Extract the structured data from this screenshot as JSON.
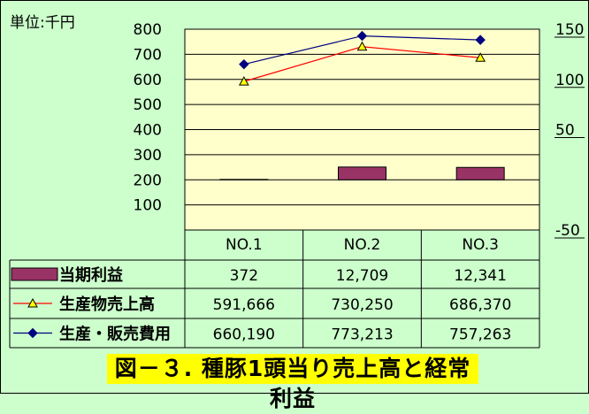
{
  "unit_label": "単位:千円",
  "caption": "図－３. 種豚1頭当り売上高と経常利益",
  "colors": {
    "background": "#ccffcc",
    "plot_area": "#ffffcc",
    "bar": "#993366",
    "line_sales": "#ff0000",
    "line_sales_marker": "#ffff00",
    "line_cost": "#000080"
  },
  "chart_data": {
    "type": "bar",
    "categories": [
      "NO.1",
      "NO.2",
      "NO.3"
    ],
    "y_left": {
      "ticks": [
        100,
        200,
        300,
        400,
        500,
        600,
        700,
        800
      ],
      "range": [
        0,
        800
      ]
    },
    "y_right": {
      "ticks": [
        "150",
        "100",
        "50",
        "-50"
      ],
      "tick_values": [
        150,
        100,
        50,
        -50
      ],
      "range": [
        -50,
        150
      ]
    },
    "series": [
      {
        "name": "当期利益",
        "kind": "bar",
        "axis": "right",
        "values": [
          0.372,
          12.709,
          12.341
        ],
        "labels": [
          "372",
          "12,709",
          "12,341"
        ],
        "marker": "rect"
      },
      {
        "name": "生産物売上高",
        "kind": "line",
        "axis": "left",
        "values": [
          591.666,
          730.25,
          686.37
        ],
        "labels": [
          "591,666",
          "730,250",
          "686,370"
        ],
        "marker": "triangle"
      },
      {
        "name": "生産・販売費用",
        "kind": "line",
        "axis": "left",
        "values": [
          660.19,
          773.213,
          757.263
        ],
        "labels": [
          "660,190",
          "773,213",
          "757,263"
        ],
        "marker": "diamond"
      }
    ],
    "gridlines": true,
    "data_table": true
  }
}
